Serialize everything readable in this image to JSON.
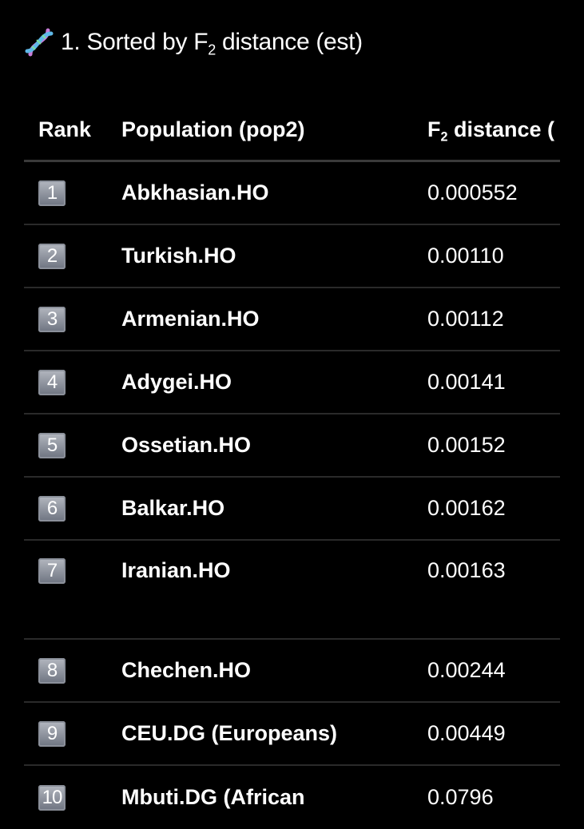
{
  "title": {
    "icon": "dna-icon",
    "prefix": "1. Sorted by F",
    "sub": "2",
    "suffix": " distance (est)"
  },
  "table": {
    "headers": {
      "rank": "Rank",
      "population": "Population (pop2)",
      "distance_prefix": "F",
      "distance_sub": "2",
      "distance_suffix": " distance ("
    },
    "rows": [
      {
        "rank": "1",
        "population": "Abkhasian.HO",
        "distance": "0.000552"
      },
      {
        "rank": "2",
        "population": "Turkish.HO",
        "distance": "0.00110"
      },
      {
        "rank": "3",
        "population": "Armenian.HO",
        "distance": "0.00112"
      },
      {
        "rank": "4",
        "population": "Adygei.HO",
        "distance": "0.00141"
      },
      {
        "rank": "5",
        "population": "Ossetian.HO",
        "distance": "0.00152"
      },
      {
        "rank": "6",
        "population": "Balkar.HO",
        "distance": "0.00162"
      },
      {
        "rank": "7",
        "population": "Iranian.HO",
        "distance": "0.00163"
      },
      {
        "rank": "8",
        "population": "Chechen.HO",
        "distance": "0.00244"
      },
      {
        "rank": "9",
        "population": "CEU.DG (Europeans)",
        "distance": "0.00449"
      },
      {
        "rank": "10",
        "population": "Mbuti.DG (African",
        "distance": "0.0796"
      }
    ]
  }
}
